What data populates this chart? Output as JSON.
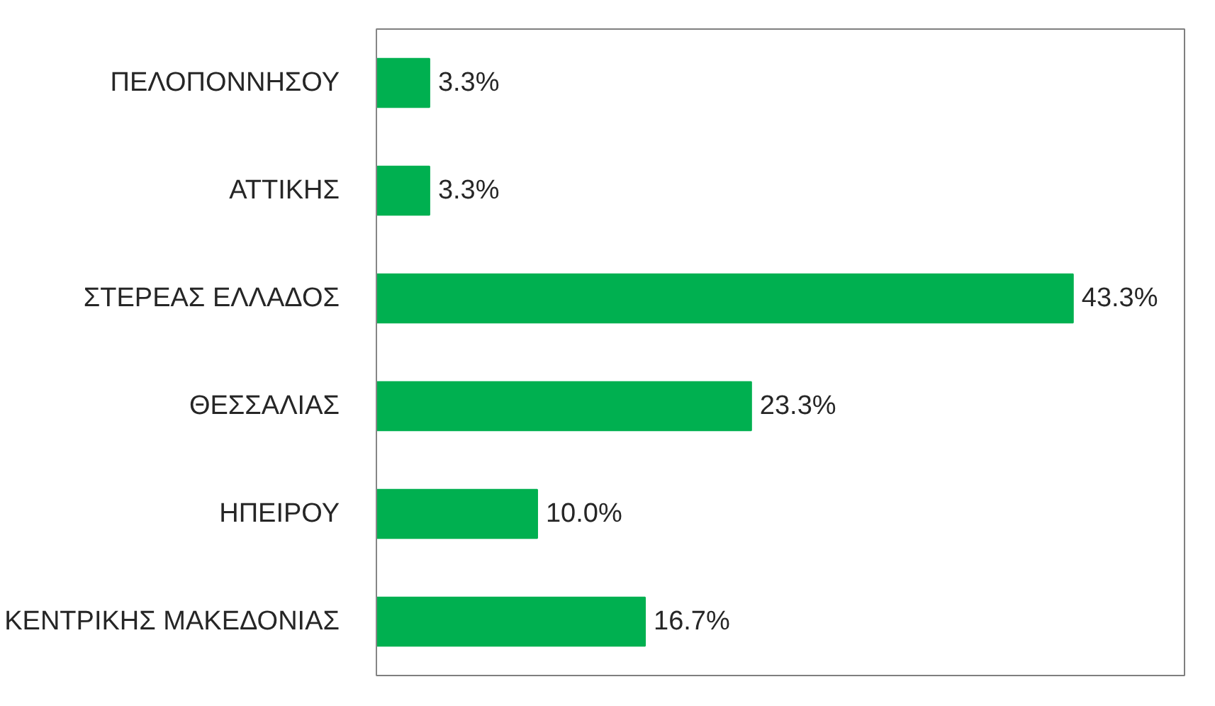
{
  "chart_data": {
    "type": "bar",
    "orientation": "horizontal",
    "categories": [
      "ΠΕΛΟΠΟΝΝΗΣΟΥ",
      "ΑΤΤΙΚΗΣ",
      "ΣΤΕΡΕΑΣ ΕΛΛΑΔΟΣ",
      "ΘΕΣΣΑΛΙΑΣ",
      "ΗΠΕΙΡΟΥ",
      "ΚΕΝΤΡΙΚΗΣ ΜΑΚΕΔΟΝΙΑΣ"
    ],
    "values": [
      3.3,
      3.3,
      43.3,
      23.3,
      10.0,
      16.7
    ],
    "value_labels": [
      "3.3%",
      "3.3%",
      "43.3%",
      "23.3%",
      "10.0%",
      "16.7%"
    ],
    "color": "#00b050",
    "grid": false
  }
}
